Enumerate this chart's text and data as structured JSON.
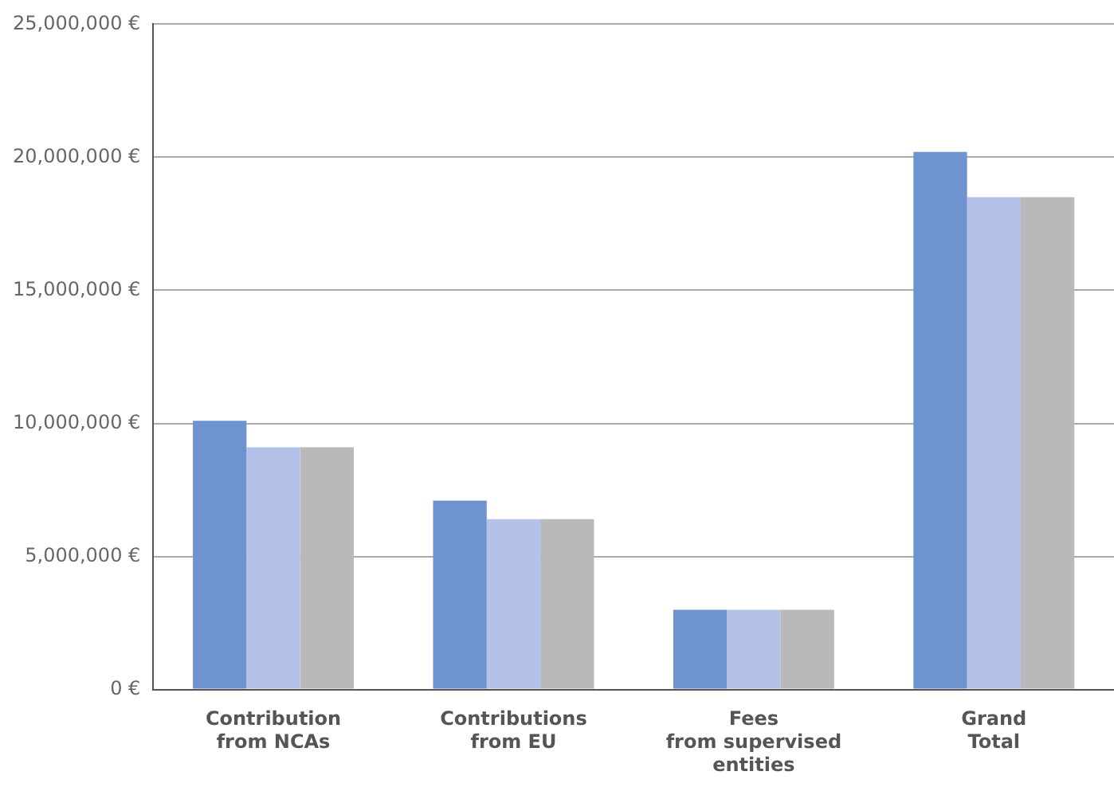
{
  "chart_data": {
    "type": "bar",
    "categories": [
      "Contribution\nfrom NCAs",
      "Contributions\nfrom EU",
      "Fees\nfrom supervised\nentities",
      "Grand\nTotal"
    ],
    "series": [
      {
        "color": "#6f93cf",
        "values": [
          10100000,
          7100000,
          3000000,
          20200000
        ]
      },
      {
        "color": "#b4c2ea",
        "values": [
          9100000,
          6400000,
          3000000,
          18500000
        ]
      },
      {
        "color": "#b8b9b8",
        "values": [
          9100000,
          6400000,
          3000000,
          18500000
        ]
      }
    ],
    "ylim": [
      0,
      25000000
    ],
    "yticks": [
      {
        "value": 0,
        "label": "0 €"
      },
      {
        "value": 5000000,
        "label": "5,000,000 €"
      },
      {
        "value": 10000000,
        "label": "10,000,000 €"
      },
      {
        "value": 15000000,
        "label": "15,000,000 €"
      },
      {
        "value": 20000000,
        "label": "20,000,000 €"
      },
      {
        "value": 25000000,
        "label": "25,000,000 €"
      }
    ],
    "grid": "y",
    "legend": false
  }
}
